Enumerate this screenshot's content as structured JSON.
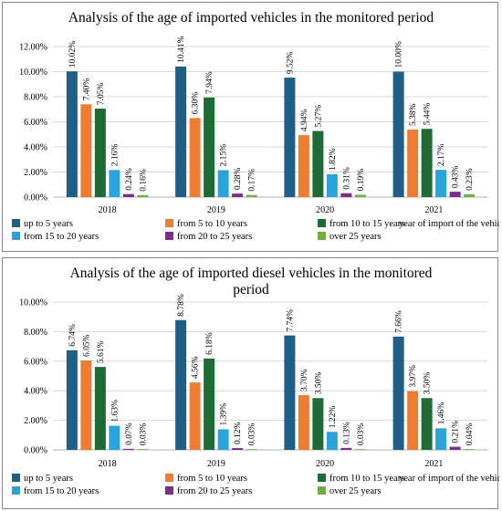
{
  "colors": [
    "#1f5f86",
    "#ed7d31",
    "#1e6b35",
    "#29a3dc",
    "#7b2c8d",
    "#6fae3f"
  ],
  "chart_data": [
    {
      "type": "bar",
      "title": "Analysis of the age of imported vehicles in the monitored period",
      "xlabel": "year of import of the vehicle",
      "ylabel": "",
      "categories": [
        "2018",
        "2019",
        "2020",
        "2021"
      ],
      "y_ticks": [
        "0.00%",
        "2.00%",
        "4.00%",
        "6.00%",
        "8.00%",
        "10.00%",
        "12.00%"
      ],
      "ylim": [
        0,
        12
      ],
      "grid": true,
      "legend": "bottom",
      "series": [
        {
          "name": "up to 5 years",
          "values": [
            10.02,
            10.41,
            9.52,
            10.0
          ],
          "labels": [
            "10.02%",
            "10.41%",
            "9.52%",
            "10.00%"
          ]
        },
        {
          "name": "from 5 to 10 years",
          "values": [
            7.4,
            6.3,
            4.94,
            5.38
          ],
          "labels": [
            "7.40%",
            "6.30%",
            "4.94%",
            "5.38%"
          ]
        },
        {
          "name": "from 10 to 15 years",
          "values": [
            7.05,
            7.94,
            5.27,
            5.44
          ],
          "labels": [
            "7.05%",
            "7.94%",
            "5.27%",
            "5.44%"
          ]
        },
        {
          "name": "from 15 to 20 years",
          "values": [
            2.16,
            2.15,
            1.82,
            2.17
          ],
          "labels": [
            "2.16%",
            "2.15%",
            "1.82%",
            "2.17%"
          ]
        },
        {
          "name": "from 20 to 25 years",
          "values": [
            0.24,
            0.28,
            0.31,
            0.43
          ],
          "labels": [
            "0.24%",
            "0.28%",
            "0.31%",
            "0.43%"
          ]
        },
        {
          "name": "over 25 years",
          "values": [
            0.16,
            0.17,
            0.19,
            0.23
          ],
          "labels": [
            "0.16%",
            "0.17%",
            "0.19%",
            "0.23%"
          ]
        }
      ]
    },
    {
      "type": "bar",
      "title": "Analysis of the age of imported diesel vehicles in the monitored period",
      "title_lines": [
        "Analysis of the age of imported diesel vehicles in the monitored",
        "period"
      ],
      "xlabel": "year of import of the vehicle",
      "ylabel": "",
      "categories": [
        "2018",
        "2019",
        "2020",
        "2021"
      ],
      "y_ticks": [
        "0.00%",
        "2.00%",
        "4.00%",
        "6.00%",
        "8.00%",
        "10.00%"
      ],
      "ylim": [
        0,
        10
      ],
      "grid": true,
      "legend": "bottom",
      "series": [
        {
          "name": "up to 5 years",
          "values": [
            6.74,
            8.78,
            7.74,
            7.66
          ],
          "labels": [
            "6.74%",
            "8.78%",
            "7.74%",
            "7.66%"
          ]
        },
        {
          "name": "from 5 to 10 years",
          "values": [
            6.05,
            4.56,
            3.7,
            3.97
          ],
          "labels": [
            "6.05%",
            "4.56%",
            "3.70%",
            "3.97%"
          ]
        },
        {
          "name": "from 10 to 15 years",
          "values": [
            5.61,
            6.18,
            3.5,
            3.5
          ],
          "labels": [
            "5.61%",
            "6.18%",
            "3.50%",
            "3.50%"
          ]
        },
        {
          "name": "from 15 to 20 years",
          "values": [
            1.63,
            1.39,
            1.22,
            1.46
          ],
          "labels": [
            "1.63%",
            "1.39%",
            "1.22%",
            "1.46%"
          ]
        },
        {
          "name": "from 20 to 25 years",
          "values": [
            0.07,
            0.12,
            0.13,
            0.21
          ],
          "labels": [
            "0.07%",
            "0.12%",
            "0.13%",
            "0.21%"
          ]
        },
        {
          "name": "over 25 years",
          "values": [
            0.03,
            0.03,
            0.03,
            0.04
          ],
          "labels": [
            "0.03%",
            "0.03%",
            "0.03%",
            "0.04%"
          ]
        }
      ]
    }
  ]
}
